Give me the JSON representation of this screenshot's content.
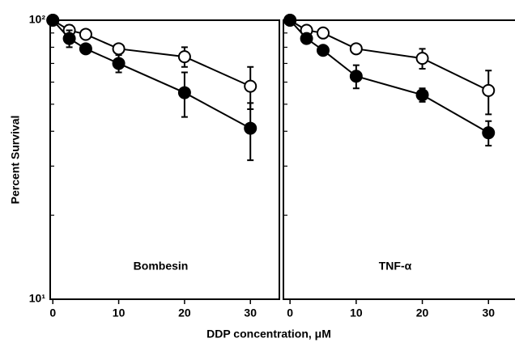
{
  "chart_data": [
    {
      "type": "line",
      "annotation": "Bombesin",
      "ylabel": "Percent Survival",
      "xlabel": "DDP concentration, μM",
      "log_y": true,
      "xlim": [
        -0.4,
        34.4
      ],
      "ylim": [
        10,
        100
      ],
      "xticks": [
        0,
        10,
        20,
        30
      ],
      "yticks": [
        {
          "value": 10,
          "label": "10¹"
        },
        {
          "value": 100,
          "label": "10²"
        }
      ],
      "minor_yticks": [
        20,
        30,
        40,
        50,
        60,
        70,
        80,
        90
      ],
      "series": [
        {
          "marker": "open",
          "color": "#000000",
          "x": [
            0,
            2.5,
            5,
            10,
            20,
            30
          ],
          "values": [
            100,
            92,
            89,
            79,
            74,
            58
          ],
          "errors": [
            null,
            4,
            null,
            null,
            6,
            10
          ]
        },
        {
          "marker": "filled",
          "color": "#000000",
          "x": [
            0,
            2.5,
            5,
            10,
            20,
            30
          ],
          "values": [
            100,
            86,
            79,
            70,
            55,
            41
          ],
          "errors": [
            null,
            6,
            null,
            5,
            10,
            9.5
          ]
        }
      ]
    },
    {
      "type": "line",
      "annotation": "TNF-α",
      "log_y": true,
      "xlim": [
        -1,
        34.5
      ],
      "ylim": [
        10,
        100
      ],
      "xticks": [
        0,
        10,
        20,
        30
      ],
      "minor_yticks": [
        20,
        30,
        40,
        50,
        60,
        70,
        80,
        90
      ],
      "series": [
        {
          "marker": "open",
          "color": "#000000",
          "x": [
            0,
            2.5,
            5,
            10,
            20,
            30
          ],
          "values": [
            100,
            92,
            90,
            79,
            73,
            56
          ],
          "errors": [
            null,
            null,
            null,
            null,
            6,
            10
          ]
        },
        {
          "marker": "filled",
          "color": "#000000",
          "x": [
            0,
            2.5,
            5,
            10,
            20,
            30
          ],
          "values": [
            100,
            86,
            78,
            63,
            54,
            39.5
          ],
          "errors": [
            null,
            null,
            null,
            6,
            3,
            4
          ]
        }
      ]
    }
  ]
}
